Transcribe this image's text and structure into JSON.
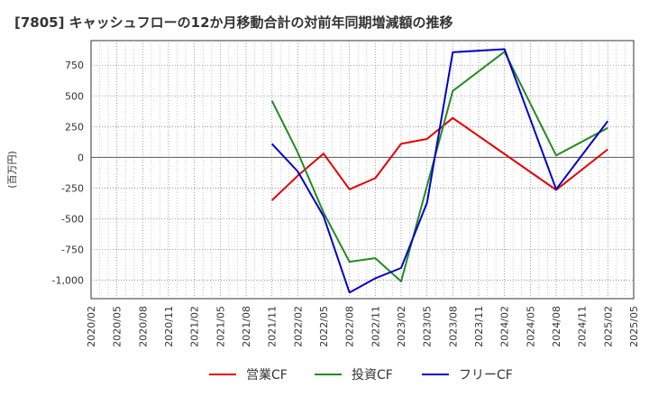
{
  "chart_data": {
    "type": "line",
    "title": "[7805]  キャッシュフローの12か月移動合計の対前年同期増減額の推移",
    "ylabel": "(百万円)",
    "xlabel": "",
    "ylim": [
      -1150,
      950
    ],
    "yticks": [
      750,
      500,
      250,
      0,
      -250,
      -500,
      -750,
      -1000
    ],
    "ytick_labels": [
      "750",
      "500",
      "250",
      "0",
      "-250",
      "-500",
      "-750",
      "-1,000"
    ],
    "categories": [
      "2020/02",
      "2020/05",
      "2020/08",
      "2020/11",
      "2021/02",
      "2021/05",
      "2021/08",
      "2021/11",
      "2022/02",
      "2022/05",
      "2022/08",
      "2022/11",
      "2023/02",
      "2023/05",
      "2023/08",
      "2023/11",
      "2024/02",
      "2024/05",
      "2024/08",
      "2024/11",
      "2025/02",
      "2025/05"
    ],
    "series": [
      {
        "name": "営業CF",
        "color": "#e60000",
        "points": [
          {
            "x": "2021/11",
            "y": -350
          },
          {
            "x": "2022/02",
            "y": -150
          },
          {
            "x": "2022/05",
            "y": 30
          },
          {
            "x": "2022/08",
            "y": -260
          },
          {
            "x": "2022/11",
            "y": -170
          },
          {
            "x": "2023/02",
            "y": 110
          },
          {
            "x": "2023/05",
            "y": 150
          },
          {
            "x": "2023/08",
            "y": 320
          },
          {
            "x": "2024/08",
            "y": -265
          },
          {
            "x": "2025/02",
            "y": 65
          }
        ]
      },
      {
        "name": "投資CF",
        "color": "#228b22",
        "points": [
          {
            "x": "2021/11",
            "y": 460
          },
          {
            "x": "2022/02",
            "y": 40
          },
          {
            "x": "2022/05",
            "y": -450
          },
          {
            "x": "2022/08",
            "y": -850
          },
          {
            "x": "2022/11",
            "y": -820
          },
          {
            "x": "2023/02",
            "y": -1010
          },
          {
            "x": "2023/08",
            "y": 540
          },
          {
            "x": "2024/02",
            "y": 860
          },
          {
            "x": "2024/08",
            "y": 15
          },
          {
            "x": "2025/02",
            "y": 240
          }
        ]
      },
      {
        "name": "フリーCF",
        "color": "#0000cc",
        "points": [
          {
            "x": "2021/11",
            "y": 110
          },
          {
            "x": "2022/02",
            "y": -115
          },
          {
            "x": "2022/05",
            "y": -480
          },
          {
            "x": "2022/08",
            "y": -1100
          },
          {
            "x": "2022/11",
            "y": -985
          },
          {
            "x": "2023/02",
            "y": -900
          },
          {
            "x": "2023/05",
            "y": -370
          },
          {
            "x": "2023/08",
            "y": 855
          },
          {
            "x": "2024/02",
            "y": 880
          },
          {
            "x": "2024/08",
            "y": -260
          },
          {
            "x": "2025/02",
            "y": 295
          }
        ]
      }
    ],
    "grid": true,
    "legend_position": "bottom-center"
  }
}
